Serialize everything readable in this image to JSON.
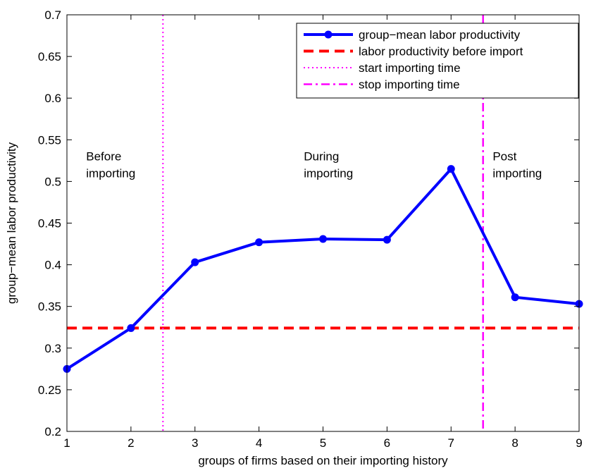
{
  "chart_data": {
    "type": "line",
    "title": "",
    "xlabel": "groups of firms based on their importing history",
    "ylabel": "group−mean labor productivity",
    "xlim": [
      1,
      9
    ],
    "ylim": [
      0.2,
      0.7
    ],
    "xticks": [
      1,
      2,
      3,
      4,
      5,
      6,
      7,
      8,
      9
    ],
    "xtick_labels": [
      "1",
      "2",
      "3",
      "4",
      "5",
      "6",
      "7",
      "8",
      "9"
    ],
    "yticks": [
      0.2,
      0.25,
      0.3,
      0.35,
      0.4,
      0.45,
      0.5,
      0.55,
      0.6,
      0.65,
      0.7
    ],
    "ytick_labels": [
      "0.2",
      "0.25",
      "0.3",
      "0.35",
      "0.4",
      "0.45",
      "0.5",
      "0.55",
      "0.6",
      "0.65",
      "0.7"
    ],
    "grid": false,
    "legend_position": "top-right",
    "series": [
      {
        "name": "group−mean labor productivity",
        "kind": "line-markers",
        "style": "solid",
        "color": "#0000ff",
        "x": [
          1,
          2,
          3,
          4,
          5,
          6,
          7,
          8,
          9
        ],
        "values": [
          0.275,
          0.324,
          0.403,
          0.427,
          0.431,
          0.43,
          0.515,
          0.361,
          0.353
        ]
      },
      {
        "name": "labor productivity before import",
        "kind": "hline",
        "style": "dashed",
        "color": "#ff0000",
        "y": 0.324
      },
      {
        "name": "start importing time",
        "kind": "vline",
        "style": "dotted",
        "color": "#ff00ff",
        "x": 2.5
      },
      {
        "name": "stop importing time",
        "kind": "vline",
        "style": "dashdot",
        "color": "#ff00ff",
        "x": 7.5
      }
    ],
    "annotations": [
      {
        "lines": [
          "Before",
          "importing"
        ],
        "x": 1.3,
        "y": 0.515
      },
      {
        "lines": [
          "During",
          "importing"
        ],
        "x": 4.7,
        "y": 0.515
      },
      {
        "lines": [
          "Post",
          "importing"
        ],
        "x": 7.65,
        "y": 0.515
      }
    ]
  }
}
